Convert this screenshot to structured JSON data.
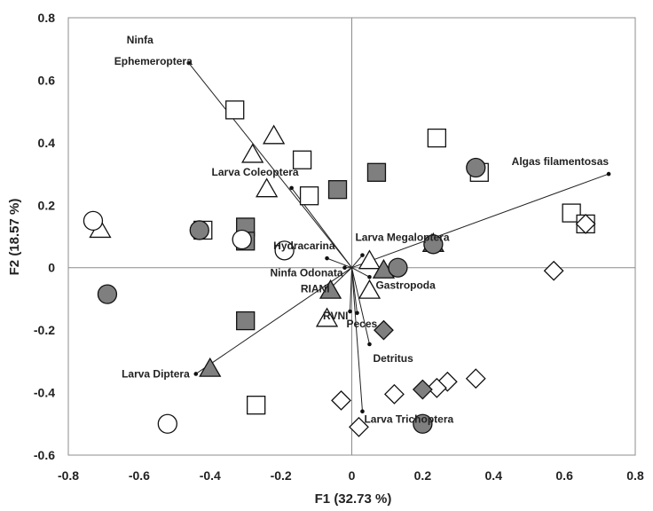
{
  "chart_data": {
    "type": "scatter",
    "title": "",
    "xlabel": "F1 (32.73 %)",
    "ylabel": "F2 (18.57 %)",
    "xlim": [
      -0.8,
      0.8
    ],
    "ylim": [
      -0.6,
      0.8
    ],
    "xticks": [
      "-0.8",
      "-0.6",
      "-0.4",
      "-0.2",
      "0",
      "0.2",
      "0.4",
      "0.6",
      "0.8"
    ],
    "yticks": [
      "-0.6",
      "-0.4",
      "-0.2",
      "0",
      "0.2",
      "0.4",
      "0.6",
      "0.8"
    ],
    "grid": false,
    "vectors": [
      {
        "label": "Ninfa",
        "label2": "Ephemeroptera",
        "x": -0.46,
        "y": 0.655,
        "anchor": "end"
      },
      {
        "label": "Algas filamentosas",
        "x": 0.725,
        "y": 0.3,
        "anchor": "end"
      },
      {
        "label": "Larva Coleoptera",
        "x": -0.17,
        "y": 0.255,
        "anchor": "end"
      },
      {
        "label": "Hydracarina",
        "x": -0.07,
        "y": 0.03,
        "anchor": "end"
      },
      {
        "label": "Larva Megaloptera",
        "x": 0.03,
        "y": 0.04,
        "anchor": "start"
      },
      {
        "label": "Ninfa Odonata",
        "x": -0.02,
        "y": 0.0,
        "anchor": "end"
      },
      {
        "label": "RIANI",
        "x": -0.06,
        "y": -0.065,
        "anchor": "end"
      },
      {
        "label": "Gastropoda",
        "x": 0.05,
        "y": -0.03,
        "anchor": "start"
      },
      {
        "label": "RVNI",
        "x": -0.005,
        "y": -0.14,
        "anchor": "end"
      },
      {
        "label": "Peces",
        "x": 0.015,
        "y": -0.145,
        "anchor": "start"
      },
      {
        "label": "Detritus",
        "x": 0.05,
        "y": -0.245,
        "anchor": "start"
      },
      {
        "label": "Larva Diptera",
        "x": -0.44,
        "y": -0.34,
        "anchor": "end"
      },
      {
        "label": "Larva Trichoptera",
        "x": 0.03,
        "y": -0.46,
        "anchor": "start"
      }
    ],
    "series": [
      {
        "name": "open-square",
        "marker": "square",
        "fill": "#ffffff",
        "points": [
          [
            -0.33,
            0.505
          ],
          [
            -0.14,
            0.345
          ],
          [
            -0.12,
            0.23
          ],
          [
            0.24,
            0.415
          ],
          [
            0.36,
            0.305
          ],
          [
            0.62,
            0.175
          ],
          [
            0.66,
            0.14
          ],
          [
            -0.42,
            0.12
          ],
          [
            -0.27,
            -0.44
          ]
        ]
      },
      {
        "name": "filled-square",
        "marker": "square",
        "fill": "#7f7f7f",
        "points": [
          [
            -0.04,
            0.25
          ],
          [
            0.07,
            0.305
          ],
          [
            -0.3,
            0.13
          ],
          [
            -0.3,
            0.085
          ],
          [
            -0.3,
            -0.17
          ]
        ]
      },
      {
        "name": "open-triangle",
        "marker": "triangle",
        "fill": "#ffffff",
        "points": [
          [
            -0.22,
            0.42
          ],
          [
            -0.28,
            0.36
          ],
          [
            -0.24,
            0.25
          ],
          [
            -0.71,
            0.12
          ],
          [
            0.05,
            0.02
          ],
          [
            0.05,
            -0.075
          ],
          [
            -0.07,
            -0.165
          ]
        ]
      },
      {
        "name": "filled-triangle",
        "marker": "triangle",
        "fill": "#7f7f7f",
        "points": [
          [
            0.23,
            0.075
          ],
          [
            0.09,
            -0.01
          ],
          [
            -0.06,
            -0.075
          ],
          [
            -0.4,
            -0.325
          ]
        ]
      },
      {
        "name": "open-circle",
        "marker": "circle",
        "fill": "#ffffff",
        "points": [
          [
            -0.73,
            0.15
          ],
          [
            -0.31,
            0.09
          ],
          [
            -0.19,
            0.055
          ],
          [
            -0.52,
            -0.5
          ]
        ]
      },
      {
        "name": "filled-circle",
        "marker": "circle",
        "fill": "#7f7f7f",
        "points": [
          [
            0.35,
            0.32
          ],
          [
            -0.43,
            0.12
          ],
          [
            0.23,
            0.075
          ],
          [
            0.13,
            0.0
          ],
          [
            -0.69,
            -0.085
          ],
          [
            0.2,
            -0.5
          ]
        ]
      },
      {
        "name": "open-diamond",
        "marker": "diamond",
        "fill": "#ffffff",
        "points": [
          [
            0.66,
            0.14
          ],
          [
            0.57,
            -0.01
          ],
          [
            0.35,
            -0.355
          ],
          [
            0.27,
            -0.365
          ],
          [
            0.24,
            -0.385
          ],
          [
            0.12,
            -0.405
          ],
          [
            -0.03,
            -0.425
          ],
          [
            0.02,
            -0.51
          ]
        ]
      },
      {
        "name": "filled-diamond",
        "marker": "diamond",
        "fill": "#7f7f7f",
        "points": [
          [
            0.09,
            -0.2
          ],
          [
            0.2,
            -0.39
          ]
        ]
      }
    ]
  }
}
